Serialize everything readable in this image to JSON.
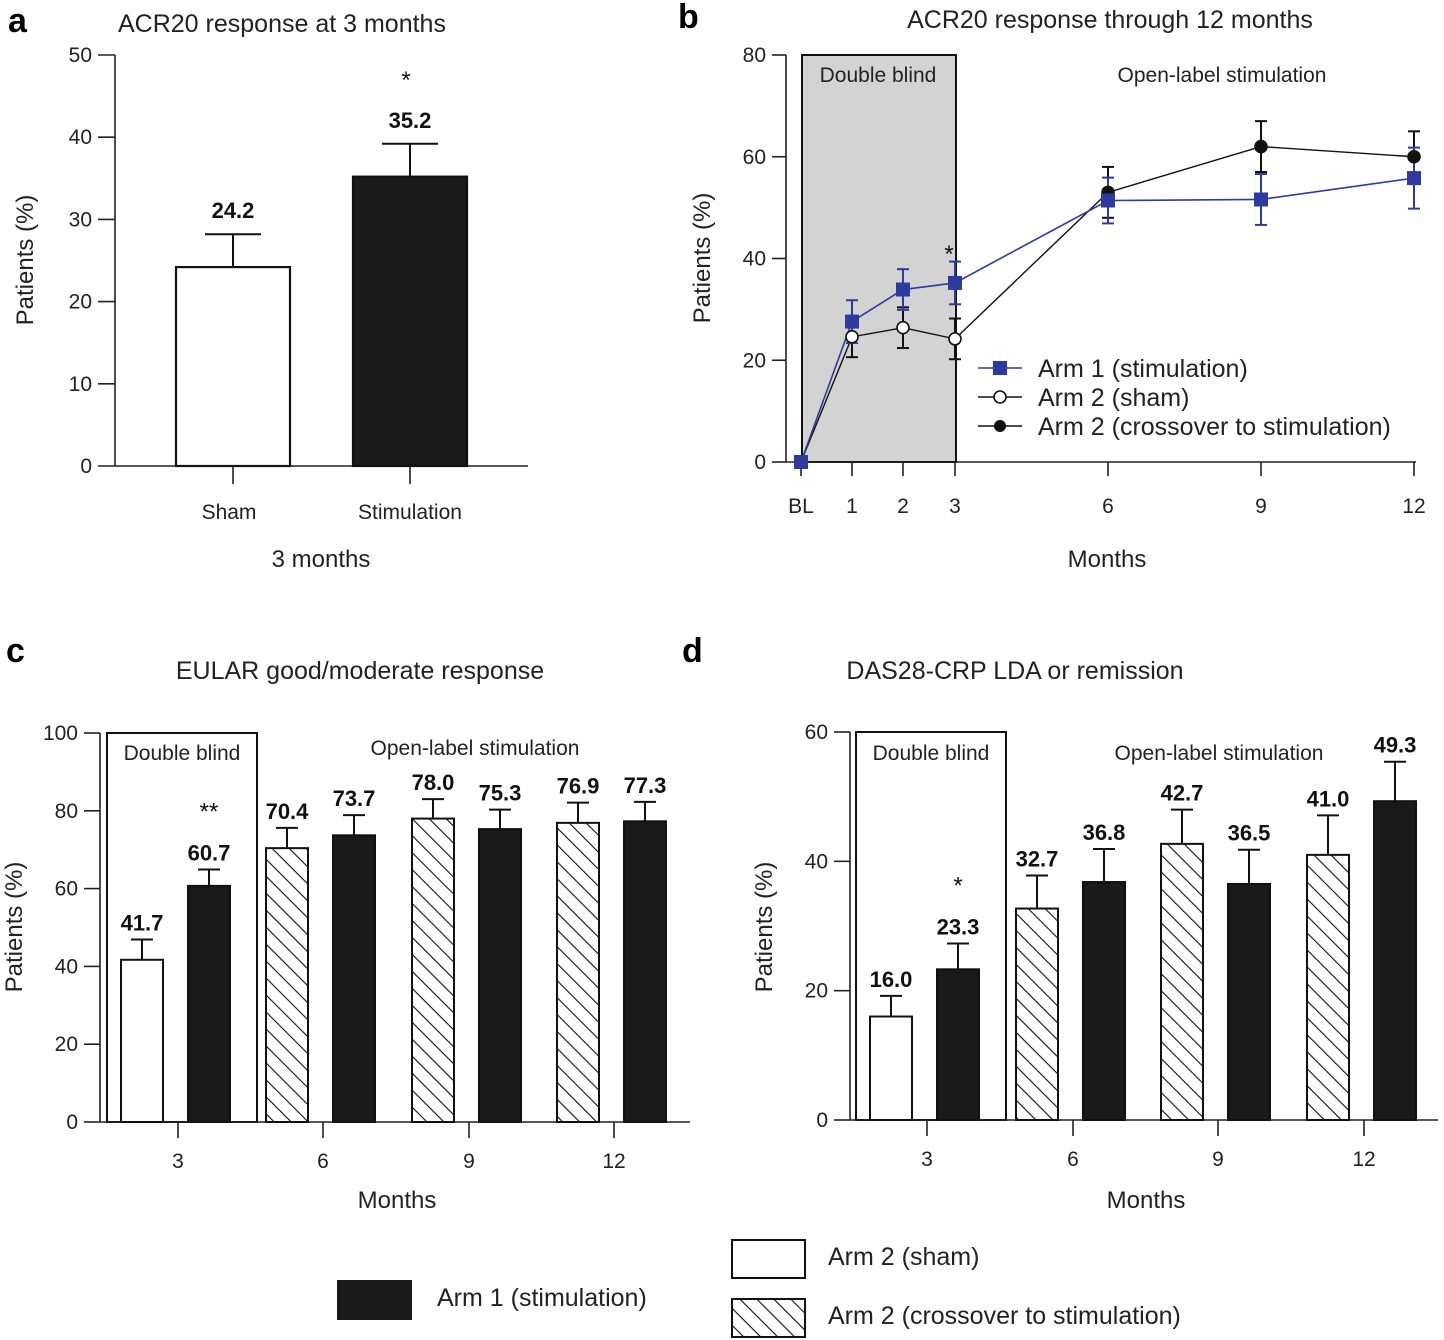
{
  "colors": {
    "arm1": "#2e3b9e",
    "black": "#1a1a1a",
    "white": "#ffffff",
    "shade": "#d3d3d3"
  },
  "legend": {
    "arm1": "Arm 1 (stimulation)",
    "arm2_sham": "Arm 2 (sham)",
    "arm2_crossover": "Arm 2 (crossover to stimulation)"
  },
  "chart_data": [
    {
      "panel": "a",
      "type": "bar",
      "title": "ACR20 response at 3 months",
      "ylabel": "Patients (%)",
      "xlabel": "3 months",
      "ylim": [
        0,
        50
      ],
      "yticks": [
        0,
        10,
        20,
        30,
        40,
        50
      ],
      "categories": [
        "Sham",
        "Stimulation"
      ],
      "values": [
        24.2,
        35.2
      ],
      "errors": [
        4.0,
        4.0
      ],
      "labels": [
        "24.2",
        "35.2"
      ],
      "significance": [
        "",
        "*"
      ]
    },
    {
      "panel": "b",
      "type": "line",
      "title": "ACR20 response through 12 months",
      "ylabel": "Patients (%)",
      "xlabel": "Months",
      "ylim": [
        0,
        80
      ],
      "yticks": [
        0,
        20,
        40,
        60,
        80
      ],
      "xticks": [
        "BL",
        "1",
        "2",
        "3",
        "6",
        "9",
        "12"
      ],
      "regions": [
        "Double blind",
        "Open-label stimulation"
      ],
      "significance_label": "*",
      "series": [
        {
          "name": "Arm 1 (stimulation)",
          "x": [
            "BL",
            "1",
            "2",
            "3",
            "6",
            "9",
            "12"
          ],
          "values": [
            0,
            27.6,
            33.9,
            35.2,
            51.4,
            51.6,
            55.8
          ],
          "errors": [
            0,
            4.2,
            4.0,
            4.2,
            4.5,
            5.0,
            6.0
          ]
        },
        {
          "name": "Arm 2 (sham)",
          "x": [
            "1",
            "2",
            "3"
          ],
          "values": [
            24.6,
            26.4,
            24.2
          ],
          "errors": [
            4.0,
            4.0,
            4.0
          ]
        },
        {
          "name": "Arm 2 (crossover to stimulation)",
          "x": [
            "6",
            "9",
            "12"
          ],
          "values": [
            53.0,
            62.0,
            60.0
          ],
          "errors": [
            5.0,
            5.0,
            5.0
          ]
        }
      ]
    },
    {
      "panel": "c",
      "type": "bar",
      "title": "EULAR good/moderate response",
      "ylabel": "Patients (%)",
      "xlabel": "Months",
      "ylim": [
        0,
        100
      ],
      "yticks": [
        0,
        20,
        40,
        60,
        80,
        100
      ],
      "categories": [
        "3",
        "6",
        "9",
        "12"
      ],
      "regions": [
        "Double blind",
        "Open-label stimulation"
      ],
      "series": [
        {
          "name": "Arm 2",
          "values": [
            41.7,
            70.4,
            78.0,
            76.9
          ],
          "errors": [
            5.2,
            5.2,
            5.0,
            5.2
          ],
          "labels": [
            "41.7",
            "70.4",
            "78.0",
            "76.9"
          ]
        },
        {
          "name": "Arm 1 (stimulation)",
          "values": [
            60.7,
            73.7,
            75.3,
            77.3
          ],
          "errors": [
            4.2,
            5.2,
            5.0,
            5.0
          ],
          "labels": [
            "60.7",
            "73.7",
            "75.3",
            "77.3"
          ]
        }
      ],
      "significance": [
        "**",
        "",
        "",
        ""
      ]
    },
    {
      "panel": "d",
      "type": "bar",
      "title": "DAS28-CRP LDA or remission",
      "ylabel": "Patients (%)",
      "xlabel": "Months",
      "ylim": [
        0,
        60
      ],
      "yticks": [
        0,
        20,
        40,
        60
      ],
      "categories": [
        "3",
        "6",
        "9",
        "12"
      ],
      "regions": [
        "Double blind",
        "Open-label stimulation"
      ],
      "series": [
        {
          "name": "Arm 2",
          "values": [
            16.0,
            32.7,
            42.7,
            41.0
          ],
          "errors": [
            3.2,
            5.1,
            5.3,
            6.1
          ],
          "labels": [
            "16.0",
            "32.7",
            "42.7",
            "41.0"
          ]
        },
        {
          "name": "Arm 1 (stimulation)",
          "values": [
            23.3,
            36.8,
            36.5,
            49.3
          ],
          "errors": [
            4.0,
            5.1,
            5.3,
            6.1
          ],
          "labels": [
            "23.3",
            "36.8",
            "36.5",
            "49.3"
          ]
        }
      ],
      "significance": [
        "*",
        "",
        "",
        ""
      ]
    }
  ]
}
